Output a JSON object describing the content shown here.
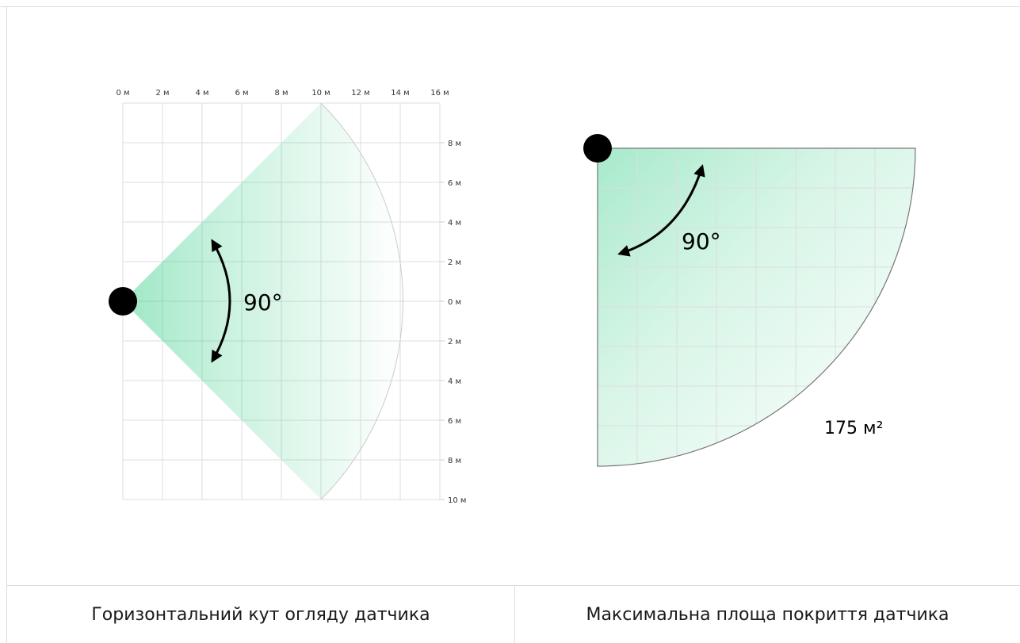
{
  "left_diagram": {
    "x_ticks": [
      "0 м",
      "2 м",
      "4 м",
      "6 м",
      "8 м",
      "10 м",
      "12 м",
      "14 м",
      "16 м"
    ],
    "y_ticks": [
      "8 м",
      "6 м",
      "4 м",
      "2 м",
      "0 м",
      "2 м",
      "4 м",
      "6 м",
      "8 м",
      "10 м"
    ],
    "angle_label": "90°",
    "detection_range_m": 10,
    "angle_deg": 90
  },
  "right_diagram": {
    "angle_label": "90°",
    "area_label": "175 м²",
    "angle_deg": 90
  },
  "captions": {
    "left": "Горизонтальний кут огляду датчика",
    "right": "Максимальна площа покриття датчика"
  },
  "colors": {
    "zone_green": "#3ccf8a",
    "grid": "#dddddd",
    "outline": "#777777",
    "sensor": "#000000"
  }
}
